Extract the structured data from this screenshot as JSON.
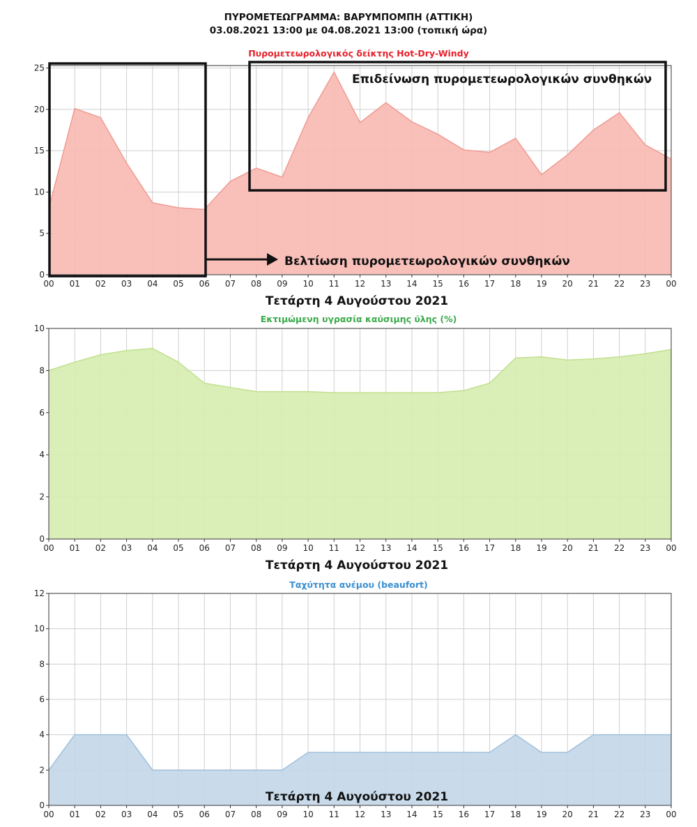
{
  "header": {
    "title_line1": "ΠΥΡΟΜΕΤΕΩΓΡΑΜΜΑ: ΒΑΡΥΜΠΟΜΠΗ (ΑΤΤΙΚΗ)",
    "title_line2": "03.08.2021 13:00 με 04.08.2021 13:00 (τοπική ώρα)"
  },
  "chart_data": [
    {
      "type": "area",
      "title": "Πυρομετεωρολογικός δείκτης Hot-Dry-Windy",
      "title_color": "#e8202a",
      "fill_color": "#f8b9b3",
      "line_color": "#f09a92",
      "xlabel": "Τετάρτη 4 Αυγούστου 2021",
      "ylabel": "",
      "x_ticks": [
        "00",
        "01",
        "02",
        "03",
        "04",
        "05",
        "06",
        "07",
        "08",
        "09",
        "10",
        "11",
        "12",
        "13",
        "14",
        "15",
        "16",
        "17",
        "18",
        "19",
        "20",
        "21",
        "22",
        "23",
        "00"
      ],
      "y_ticks": [
        0,
        5,
        10,
        15,
        20,
        25
      ],
      "ylim": [
        0,
        25.3
      ],
      "grid": true,
      "values": [
        8.0,
        20.1,
        19.0,
        13.5,
        8.7,
        8.1,
        7.9,
        11.3,
        12.9,
        11.8,
        19.0,
        24.5,
        18.4,
        20.8,
        18.5,
        17.0,
        15.1,
        14.8,
        16.5,
        12.1,
        14.5,
        17.5,
        19.6,
        15.7,
        14.0
      ],
      "annotations": {
        "worsening": "Επιδείνωση πυρομετεωρολογικών συνθηκών",
        "improvement": "Βελτίωση πυρομετεωρολογικών συνθηκών"
      }
    },
    {
      "type": "area",
      "title": "Εκτιμώμενη υγρασία καύσιμης ύλης (%)",
      "title_color": "#3aaa4a",
      "fill_color": "#d6ecb0",
      "line_color": "#c2e08e",
      "xlabel": "Τετάρτη 4 Αυγούστου 2021",
      "ylabel": "",
      "x_ticks": [
        "00",
        "01",
        "02",
        "03",
        "04",
        "05",
        "06",
        "07",
        "08",
        "09",
        "10",
        "11",
        "12",
        "13",
        "14",
        "15",
        "16",
        "17",
        "18",
        "19",
        "20",
        "21",
        "22",
        "23",
        "00"
      ],
      "y_ticks": [
        0,
        2,
        4,
        6,
        8,
        10
      ],
      "ylim": [
        0,
        10
      ],
      "grid": true,
      "values": [
        8.0,
        8.4,
        8.75,
        8.95,
        9.05,
        8.4,
        7.4,
        7.2,
        7.0,
        7.0,
        7.0,
        6.95,
        6.95,
        6.95,
        6.95,
        6.95,
        7.05,
        7.4,
        8.6,
        8.65,
        8.5,
        8.55,
        8.65,
        8.8,
        9.0
      ]
    },
    {
      "type": "area",
      "title": "Ταχύτητα ανέμου (beaufort)",
      "title_color": "#3a8fcf",
      "fill_color": "#c3d7e8",
      "line_color": "#9fc0dc",
      "xlabel": "Τετάρτη 4 Αυγούστου 2021",
      "ylabel": "",
      "x_ticks": [
        "00",
        "01",
        "02",
        "03",
        "04",
        "05",
        "06",
        "07",
        "08",
        "09",
        "10",
        "11",
        "12",
        "13",
        "14",
        "15",
        "16",
        "17",
        "18",
        "19",
        "20",
        "21",
        "22",
        "23",
        "00"
      ],
      "y_ticks": [
        0,
        2,
        4,
        6,
        8,
        10,
        12
      ],
      "ylim": [
        0,
        12
      ],
      "grid": true,
      "values": [
        2,
        4,
        4,
        4,
        2,
        2,
        2,
        2,
        2,
        2,
        3,
        3,
        3,
        3,
        3,
        3,
        3,
        3,
        4,
        3,
        3,
        4,
        4,
        4,
        4
      ]
    }
  ]
}
